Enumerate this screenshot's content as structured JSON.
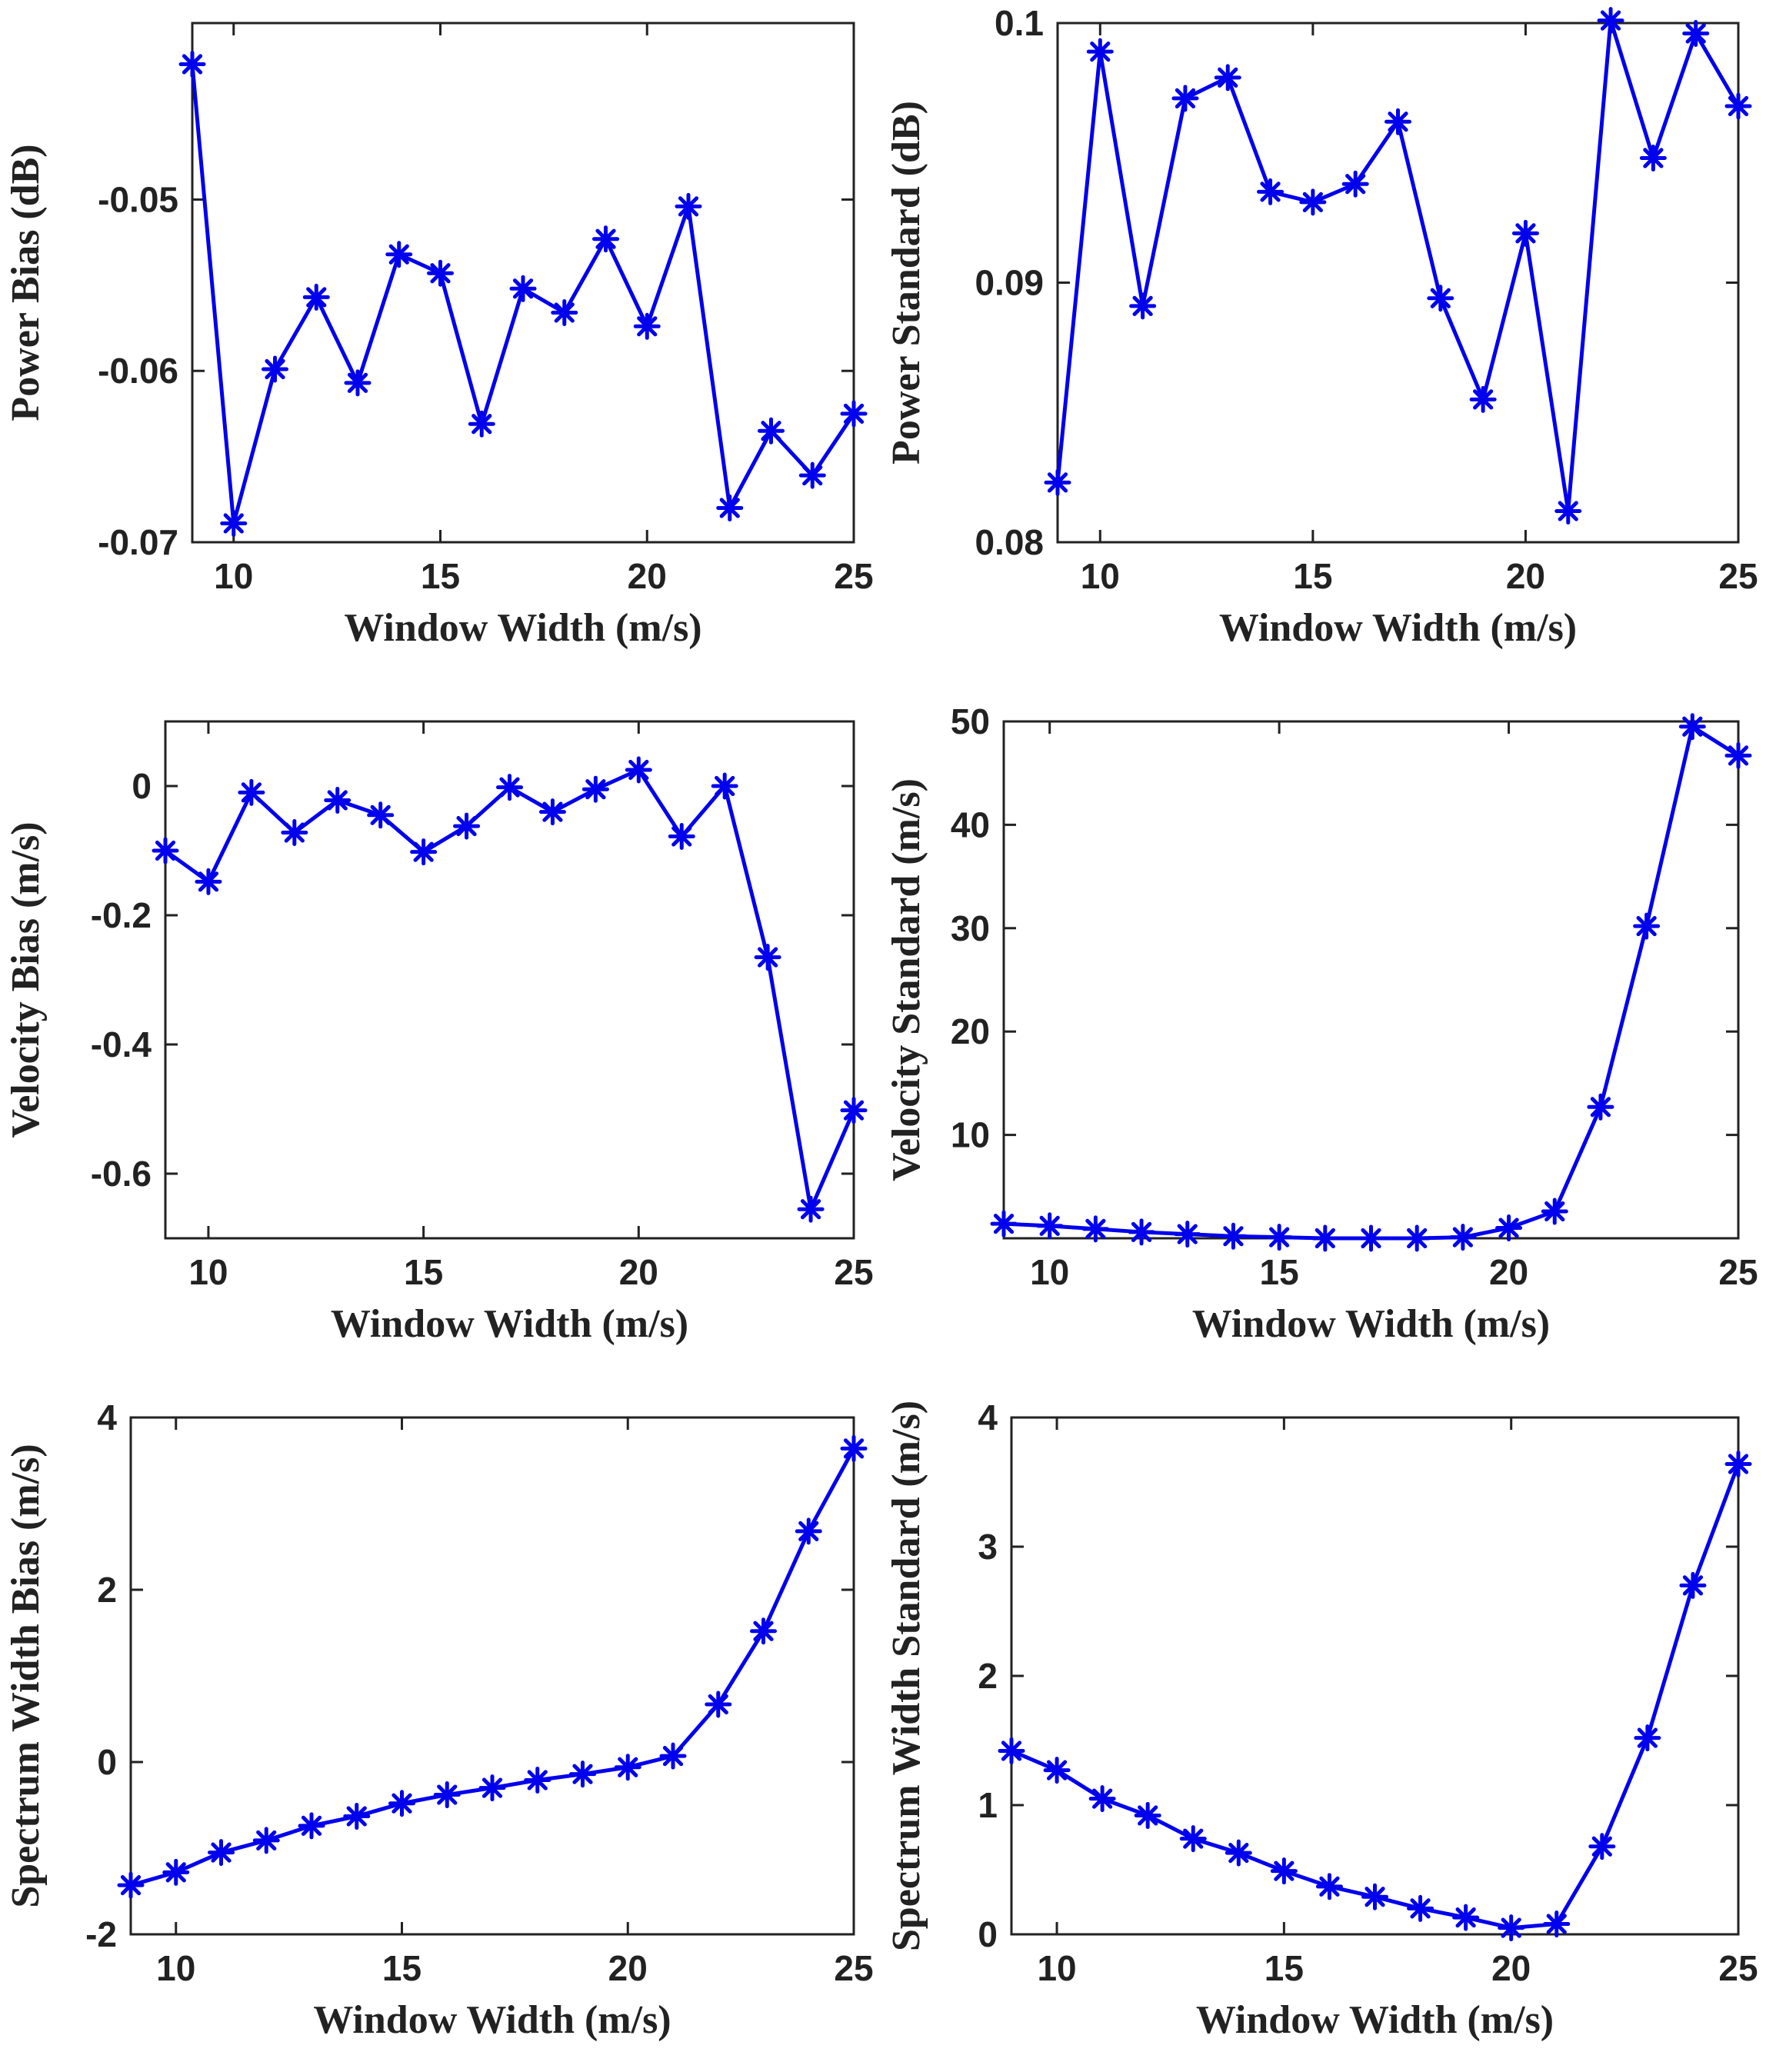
{
  "series_color": "#0000ee",
  "chart_data": [
    {
      "type": "line",
      "name": "power-bias",
      "xlabel": "Window Width (m/s)",
      "ylabel": "Power Bias (dB)",
      "xlim": [
        9,
        25
      ],
      "ylim": [
        -0.07,
        -0.0397
      ],
      "xticks": [
        10,
        15,
        20,
        25
      ],
      "xtick_labels": [
        "10",
        "15",
        "20",
        "25"
      ],
      "yticks": [
        -0.05,
        -0.06,
        -0.07
      ],
      "ytick_labels": [
        "-0.05",
        "-0.06",
        "-0.07"
      ],
      "x": [
        9,
        10,
        11,
        12,
        13,
        14,
        15,
        16,
        17,
        18,
        19,
        20,
        21,
        22,
        23,
        24,
        25
      ],
      "y": [
        -0.0421,
        -0.0689,
        -0.0599,
        -0.0557,
        -0.0607,
        -0.0532,
        -0.0543,
        -0.0631,
        -0.0552,
        -0.0566,
        -0.0523,
        -0.0574,
        -0.0504,
        -0.068,
        -0.0635,
        -0.0661,
        -0.0625
      ]
    },
    {
      "type": "line",
      "name": "power-standard",
      "xlabel": "Window Width (m/s)",
      "ylabel": "Power Standard (dB)",
      "xlim": [
        9,
        25
      ],
      "ylim": [
        0.08,
        0.1
      ],
      "xticks": [
        10,
        15,
        20,
        25
      ],
      "xtick_labels": [
        "10",
        "15",
        "20",
        "25"
      ],
      "yticks": [
        0.1,
        0.09,
        0.08
      ],
      "ytick_labels": [
        "0.1",
        "0.09",
        "0.08"
      ],
      "x": [
        9,
        10,
        11,
        12,
        13,
        14,
        15,
        16,
        17,
        18,
        19,
        20,
        21,
        22,
        23,
        24,
        25
      ],
      "y": [
        0.0823,
        0.0989,
        0.0891,
        0.0971,
        0.0979,
        0.0935,
        0.0931,
        0.0938,
        0.0962,
        0.0894,
        0.0855,
        0.0919,
        0.0812,
        0.1001,
        0.0948,
        0.0996,
        0.0968
      ]
    },
    {
      "type": "line",
      "name": "velocity-bias",
      "xlabel": "Window Width (m/s)",
      "ylabel": "Velocity Bias (m/s)",
      "xlim": [
        9,
        25
      ],
      "ylim": [
        -0.7,
        0.1
      ],
      "xticks": [
        10,
        15,
        20,
        25
      ],
      "xtick_labels": [
        "10",
        "15",
        "20",
        "25"
      ],
      "yticks": [
        0,
        -0.2,
        -0.4,
        -0.6
      ],
      "ytick_labels": [
        "0",
        "-0.2",
        "-0.4",
        "-0.6"
      ],
      "x": [
        9,
        10,
        11,
        12,
        13,
        14,
        15,
        16,
        17,
        18,
        19,
        20,
        21,
        22,
        23,
        24,
        25
      ],
      "y": [
        -0.1,
        -0.148,
        -0.01,
        -0.072,
        -0.022,
        -0.045,
        -0.102,
        -0.062,
        -0.002,
        -0.04,
        -0.005,
        0.025,
        -0.078,
        0.0,
        -0.265,
        -0.655,
        -0.502
      ]
    },
    {
      "type": "line",
      "name": "velocity-standard",
      "xlabel": "Window Width (m/s)",
      "ylabel": "Velocity Standard (m/s)",
      "xlim": [
        9,
        25
      ],
      "ylim": [
        0,
        50
      ],
      "xticks": [
        10,
        15,
        20,
        25
      ],
      "xtick_labels": [
        "10",
        "15",
        "20",
        "25"
      ],
      "yticks": [
        50,
        40,
        30,
        20,
        10
      ],
      "ytick_labels": [
        "50",
        "40",
        "30",
        "20",
        "10"
      ],
      "x": [
        9,
        10,
        11,
        12,
        13,
        14,
        15,
        16,
        17,
        18,
        19,
        20,
        21,
        22,
        23,
        24,
        25
      ],
      "y": [
        1.4,
        1.2,
        0.9,
        0.6,
        0.4,
        0.2,
        0.1,
        0.0,
        0.0,
        0.0,
        0.1,
        1.0,
        2.6,
        12.7,
        30.2,
        49.5,
        46.7
      ]
    },
    {
      "type": "line",
      "name": "spectrum-width-bias",
      "xlabel": "Window Width (m/s)",
      "ylabel": "Spectrum Width Bias (m/s)",
      "xlim": [
        9,
        25
      ],
      "ylim": [
        -2,
        4
      ],
      "xticks": [
        10,
        15,
        20,
        25
      ],
      "xtick_labels": [
        "10",
        "15",
        "20",
        "25"
      ],
      "yticks": [
        4,
        2,
        0,
        -2
      ],
      "ytick_labels": [
        "4",
        "2",
        "0",
        "-2"
      ],
      "x": [
        9,
        10,
        11,
        12,
        13,
        14,
        15,
        16,
        17,
        18,
        19,
        20,
        21,
        22,
        23,
        24,
        25
      ],
      "y": [
        -1.43,
        -1.28,
        -1.05,
        -0.91,
        -0.74,
        -0.63,
        -0.48,
        -0.38,
        -0.3,
        -0.21,
        -0.14,
        -0.06,
        0.07,
        0.67,
        1.52,
        2.68,
        3.64
      ]
    },
    {
      "type": "line",
      "name": "spectrum-width-standard",
      "xlabel": "Window Width (m/s)",
      "ylabel": "Spectrum Width Standard (m/s)",
      "xlim": [
        9,
        25
      ],
      "ylim": [
        0,
        4
      ],
      "xticks": [
        10,
        15,
        20,
        25
      ],
      "xtick_labels": [
        "10",
        "15",
        "20",
        "25"
      ],
      "yticks": [
        4,
        3,
        2,
        1,
        0
      ],
      "ytick_labels": [
        "4",
        "3",
        "2",
        "1",
        "0"
      ],
      "x": [
        9,
        10,
        11,
        12,
        13,
        14,
        15,
        16,
        17,
        18,
        19,
        20,
        21,
        22,
        23,
        24,
        25
      ],
      "y": [
        1.42,
        1.27,
        1.05,
        0.92,
        0.74,
        0.63,
        0.49,
        0.37,
        0.29,
        0.2,
        0.13,
        0.05,
        0.08,
        0.68,
        1.52,
        2.7,
        3.64
      ]
    }
  ]
}
